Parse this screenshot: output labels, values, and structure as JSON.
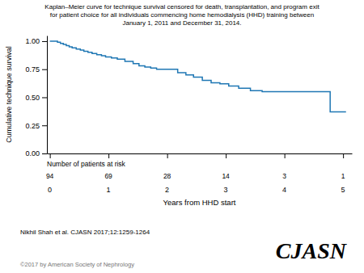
{
  "chart_data": {
    "type": "step",
    "title": [
      "Kaplan–Meier curve for technique survival censored for death, transplantation, and program exit",
      "for patient choice for all individuals commencing home hemodialysis (HHD) training between",
      "January 1, 2011 and December 31, 2014."
    ],
    "x_label": "Years from HHD start",
    "y_label": "Cumulative technique survival",
    "x": [
      0.0,
      0.08,
      0.13,
      0.18,
      0.23,
      0.28,
      0.33,
      0.38,
      0.45,
      0.52,
      0.58,
      0.65,
      0.72,
      0.8,
      0.88,
      0.95,
      1.05,
      1.15,
      1.28,
      1.42,
      1.52,
      1.62,
      1.72,
      1.82,
      1.92,
      2.05,
      2.18,
      2.32,
      2.45,
      2.6,
      2.75,
      2.9,
      3.05,
      3.22,
      3.42,
      3.62,
      3.85,
      4.05,
      4.25,
      4.45,
      4.68,
      4.78,
      5.05
    ],
    "values": [
      1.0,
      1.0,
      0.99,
      0.98,
      0.97,
      0.96,
      0.95,
      0.94,
      0.93,
      0.92,
      0.91,
      0.9,
      0.89,
      0.88,
      0.87,
      0.86,
      0.85,
      0.84,
      0.82,
      0.8,
      0.78,
      0.77,
      0.76,
      0.75,
      0.75,
      0.75,
      0.72,
      0.7,
      0.68,
      0.65,
      0.63,
      0.62,
      0.6,
      0.58,
      0.56,
      0.55,
      0.55,
      0.55,
      0.55,
      0.55,
      0.55,
      0.37,
      0.37
    ],
    "xlim": [
      -0.05,
      5.15
    ],
    "xticks": [
      0,
      1,
      2,
      3,
      4,
      5
    ],
    "ylim": [
      0.0,
      1.05
    ],
    "yticks": [
      {
        "value": 0.0,
        "label": "0.00"
      },
      {
        "value": 0.25,
        "label": "0.25"
      },
      {
        "value": 0.5,
        "label": "0.50"
      },
      {
        "value": 0.75,
        "label": "0.75"
      },
      {
        "value": 1.0,
        "label": "1.00"
      }
    ],
    "grid": false,
    "at_risk_label": "Number of patients at risk",
    "at_risk_times": [
      0,
      1,
      2,
      3,
      4,
      5
    ],
    "at_risk_counts": [
      94,
      69,
      28,
      14,
      3,
      1
    ],
    "annotations": [
      "Nikhil Shah et al. CJASN 2017;12:1259-1264",
      "©2017 by American Society of Nephrology",
      "CJASN"
    ]
  }
}
